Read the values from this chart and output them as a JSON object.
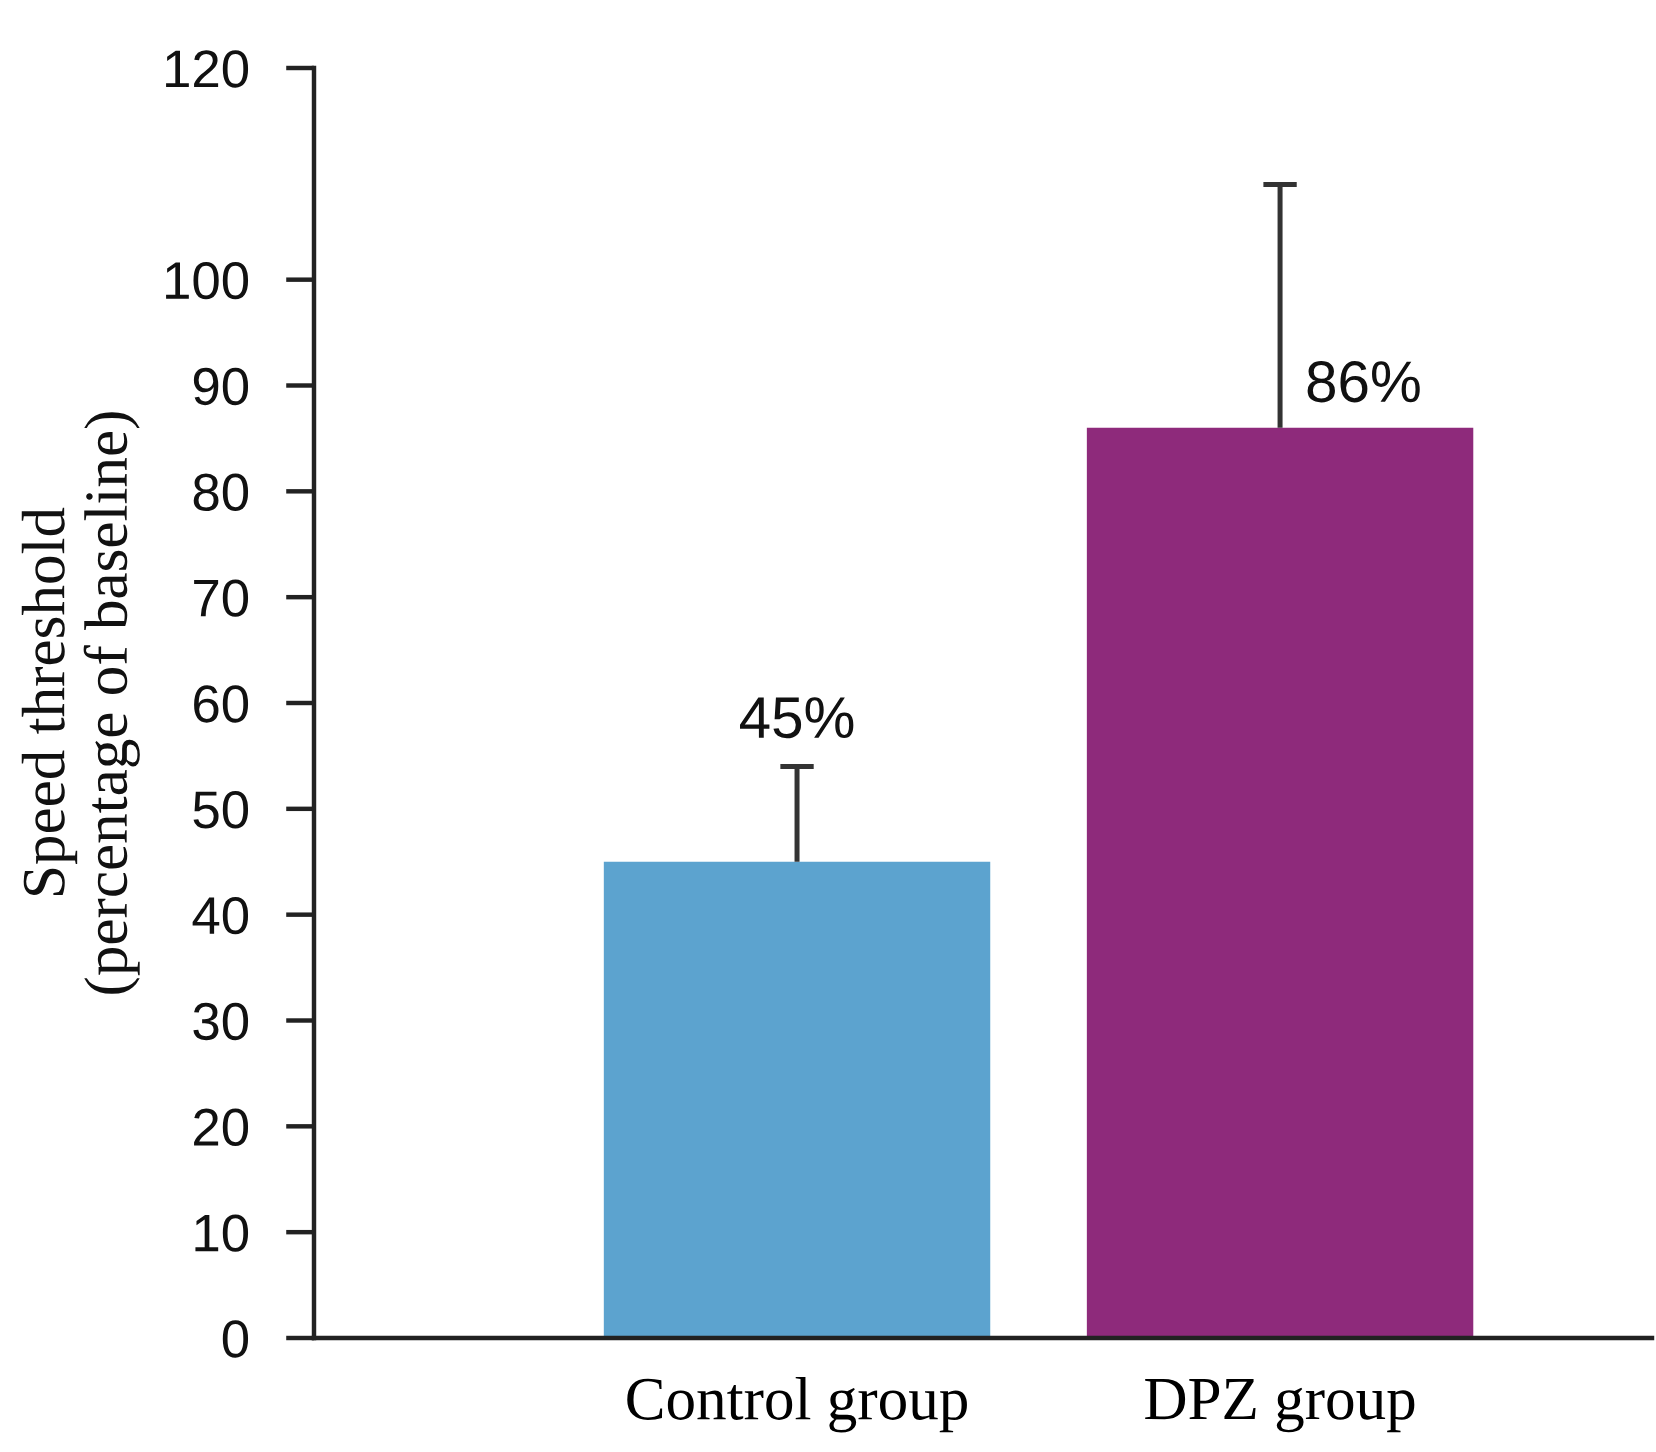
{
  "chart_data": {
    "type": "bar",
    "ylabel": "Speed threshold\n(percentage of baseline)",
    "categories": [
      "Control group",
      "DPZ group"
    ],
    "values": [
      45,
      86
    ],
    "colors": [
      "#5ca3cf",
      "#8e2a7b"
    ],
    "errors": [
      [
        45,
        54
      ],
      [
        86,
        109
      ]
    ],
    "value_labels": [
      "45%",
      "86%"
    ],
    "ylim": [
      0,
      120
    ],
    "yticks": [
      0,
      10,
      20,
      30,
      40,
      50,
      60,
      70,
      80,
      90,
      100,
      120
    ]
  }
}
